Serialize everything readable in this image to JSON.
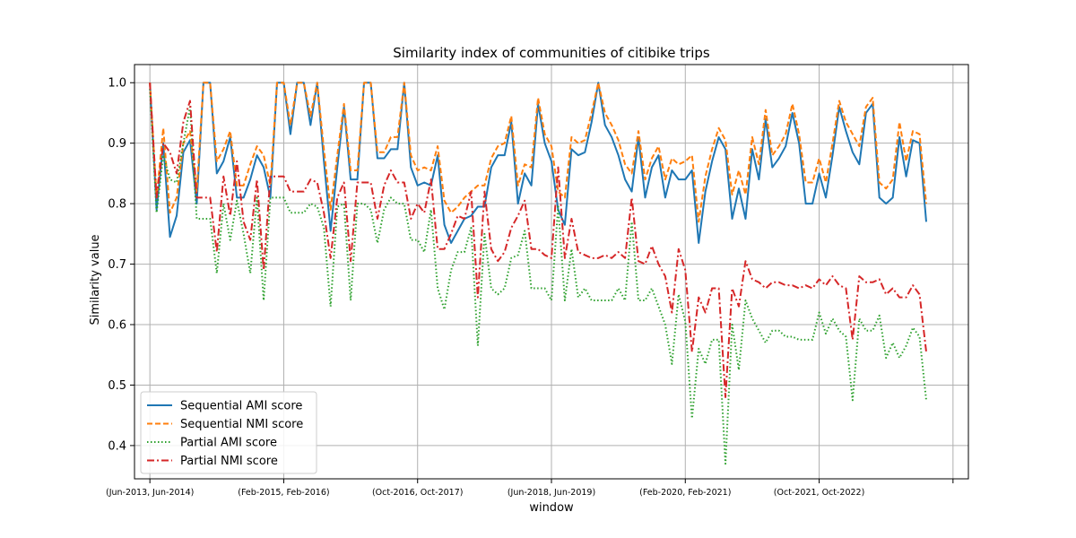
{
  "chart_data": {
    "type": "line",
    "title": "Similarity index of communities of citibike trips",
    "xlabel": "window",
    "ylabel": "Similarity value",
    "ylim": [
      0.345,
      1.03
    ],
    "xlim": [
      -2.3,
      122.3
    ],
    "yticks": [
      0.4,
      0.5,
      0.6,
      0.7,
      0.8,
      0.9,
      1.0
    ],
    "ytick_labels": [
      "0.4",
      "0.5",
      "0.6",
      "0.7",
      "0.8",
      "0.9",
      "1.0"
    ],
    "xticks": [
      0,
      20,
      40,
      60,
      80,
      100,
      120
    ],
    "xtick_labels": [
      "(Jun-2013, Jun-2014)",
      "(Feb-2015, Feb-2016)",
      "(Oct-2016, Oct-2017)",
      "(Jun-2018, Jun-2019)",
      "(Feb-2020, Feb-2021)",
      "(Oct-2021, Oct-2022)",
      ""
    ],
    "grid": true,
    "legend_position": "lower-left",
    "series": [
      {
        "name": "Sequential AMI score",
        "color": "#1f77b4",
        "style": "solid",
        "values": [
          1.0,
          0.79,
          0.9,
          0.745,
          0.78,
          0.885,
          0.905,
          0.8,
          1.0,
          1.0,
          0.85,
          0.87,
          0.91,
          0.81,
          0.81,
          0.84,
          0.88,
          0.86,
          0.81,
          1.0,
          1.0,
          0.915,
          1.0,
          1.0,
          0.93,
          1.0,
          0.87,
          0.755,
          0.86,
          0.96,
          0.84,
          0.84,
          1.0,
          1.0,
          0.875,
          0.875,
          0.89,
          0.89,
          1.0,
          0.86,
          0.83,
          0.835,
          0.83,
          0.88,
          0.765,
          0.735,
          0.755,
          0.775,
          0.78,
          0.795,
          0.795,
          0.86,
          0.88,
          0.88,
          0.935,
          0.8,
          0.85,
          0.83,
          0.965,
          0.9,
          0.87,
          0.79,
          0.765,
          0.89,
          0.88,
          0.885,
          0.935,
          1.0,
          0.93,
          0.91,
          0.88,
          0.84,
          0.82,
          0.91,
          0.81,
          0.86,
          0.88,
          0.81,
          0.855,
          0.84,
          0.84,
          0.855,
          0.735,
          0.82,
          0.87,
          0.91,
          0.89,
          0.775,
          0.825,
          0.775,
          0.89,
          0.84,
          0.94,
          0.86,
          0.875,
          0.895,
          0.95,
          0.9,
          0.8,
          0.8,
          0.85,
          0.81,
          0.88,
          0.96,
          0.92,
          0.885,
          0.865,
          0.95,
          0.965,
          0.81,
          0.8,
          0.81,
          0.91,
          0.845,
          0.905,
          0.9,
          0.77
        ]
      },
      {
        "name": "Sequential NMI score",
        "color": "#ff7f0e",
        "style": "dashed",
        "values": [
          1.0,
          0.81,
          0.925,
          0.785,
          0.81,
          0.9,
          0.92,
          0.82,
          1.0,
          1.0,
          0.87,
          0.89,
          0.92,
          0.83,
          0.83,
          0.865,
          0.895,
          0.88,
          0.83,
          1.0,
          1.0,
          0.93,
          1.0,
          1.0,
          0.945,
          1.0,
          0.89,
          0.79,
          0.88,
          0.965,
          0.855,
          0.855,
          1.0,
          1.0,
          0.885,
          0.885,
          0.91,
          0.91,
          1.0,
          0.88,
          0.855,
          0.86,
          0.855,
          0.895,
          0.805,
          0.785,
          0.795,
          0.81,
          0.82,
          0.83,
          0.83,
          0.875,
          0.895,
          0.9,
          0.945,
          0.83,
          0.865,
          0.86,
          0.975,
          0.915,
          0.895,
          0.82,
          0.81,
          0.91,
          0.9,
          0.905,
          0.95,
          1.0,
          0.95,
          0.93,
          0.905,
          0.865,
          0.85,
          0.92,
          0.84,
          0.875,
          0.895,
          0.84,
          0.875,
          0.865,
          0.87,
          0.88,
          0.77,
          0.845,
          0.89,
          0.925,
          0.905,
          0.815,
          0.855,
          0.815,
          0.91,
          0.865,
          0.955,
          0.88,
          0.895,
          0.915,
          0.965,
          0.915,
          0.835,
          0.835,
          0.875,
          0.835,
          0.9,
          0.97,
          0.935,
          0.915,
          0.895,
          0.96,
          0.975,
          0.835,
          0.825,
          0.84,
          0.935,
          0.87,
          0.92,
          0.915,
          0.8
        ]
      },
      {
        "name": "Partial AMI score",
        "color": "#2ca02c",
        "style": "dotted",
        "values": [
          0.99,
          0.785,
          0.88,
          0.84,
          0.835,
          0.9,
          0.96,
          0.775,
          0.775,
          0.775,
          0.685,
          0.8,
          0.74,
          0.805,
          0.75,
          0.685,
          0.81,
          0.64,
          0.81,
          0.81,
          0.81,
          0.785,
          0.785,
          0.785,
          0.8,
          0.795,
          0.76,
          0.63,
          0.795,
          0.8,
          0.64,
          0.8,
          0.8,
          0.79,
          0.735,
          0.79,
          0.81,
          0.8,
          0.8,
          0.74,
          0.74,
          0.72,
          0.79,
          0.66,
          0.625,
          0.69,
          0.72,
          0.72,
          0.76,
          0.565,
          0.75,
          0.66,
          0.65,
          0.66,
          0.71,
          0.715,
          0.755,
          0.66,
          0.66,
          0.66,
          0.64,
          0.795,
          0.64,
          0.725,
          0.645,
          0.66,
          0.64,
          0.64,
          0.64,
          0.64,
          0.66,
          0.64,
          0.77,
          0.64,
          0.64,
          0.66,
          0.63,
          0.6,
          0.535,
          0.65,
          0.605,
          0.445,
          0.56,
          0.535,
          0.575,
          0.575,
          0.37,
          0.6,
          0.525,
          0.64,
          0.61,
          0.59,
          0.57,
          0.59,
          0.59,
          0.58,
          0.58,
          0.575,
          0.575,
          0.575,
          0.62,
          0.585,
          0.61,
          0.59,
          0.58,
          0.475,
          0.61,
          0.59,
          0.59,
          0.615,
          0.545,
          0.57,
          0.545,
          0.565,
          0.595,
          0.58,
          0.475
        ]
      },
      {
        "name": "Partial NMI score",
        "color": "#d62728",
        "style": "dashdot",
        "values": [
          1.0,
          0.81,
          0.9,
          0.885,
          0.85,
          0.935,
          0.97,
          0.81,
          0.81,
          0.81,
          0.72,
          0.845,
          0.78,
          0.87,
          0.77,
          0.74,
          0.84,
          0.69,
          0.845,
          0.845,
          0.845,
          0.82,
          0.82,
          0.82,
          0.84,
          0.835,
          0.785,
          0.71,
          0.81,
          0.835,
          0.705,
          0.835,
          0.835,
          0.835,
          0.775,
          0.83,
          0.855,
          0.835,
          0.835,
          0.775,
          0.8,
          0.785,
          0.84,
          0.725,
          0.725,
          0.75,
          0.78,
          0.775,
          0.82,
          0.645,
          0.82,
          0.725,
          0.705,
          0.72,
          0.76,
          0.78,
          0.805,
          0.725,
          0.725,
          0.715,
          0.71,
          0.86,
          0.71,
          0.775,
          0.72,
          0.715,
          0.71,
          0.71,
          0.715,
          0.71,
          0.72,
          0.71,
          0.81,
          0.705,
          0.7,
          0.73,
          0.7,
          0.68,
          0.62,
          0.725,
          0.69,
          0.555,
          0.645,
          0.62,
          0.66,
          0.66,
          0.48,
          0.66,
          0.63,
          0.705,
          0.675,
          0.67,
          0.66,
          0.67,
          0.67,
          0.665,
          0.665,
          0.66,
          0.665,
          0.66,
          0.675,
          0.665,
          0.68,
          0.665,
          0.66,
          0.575,
          0.68,
          0.67,
          0.67,
          0.675,
          0.65,
          0.66,
          0.645,
          0.645,
          0.665,
          0.65,
          0.555
        ]
      }
    ]
  }
}
